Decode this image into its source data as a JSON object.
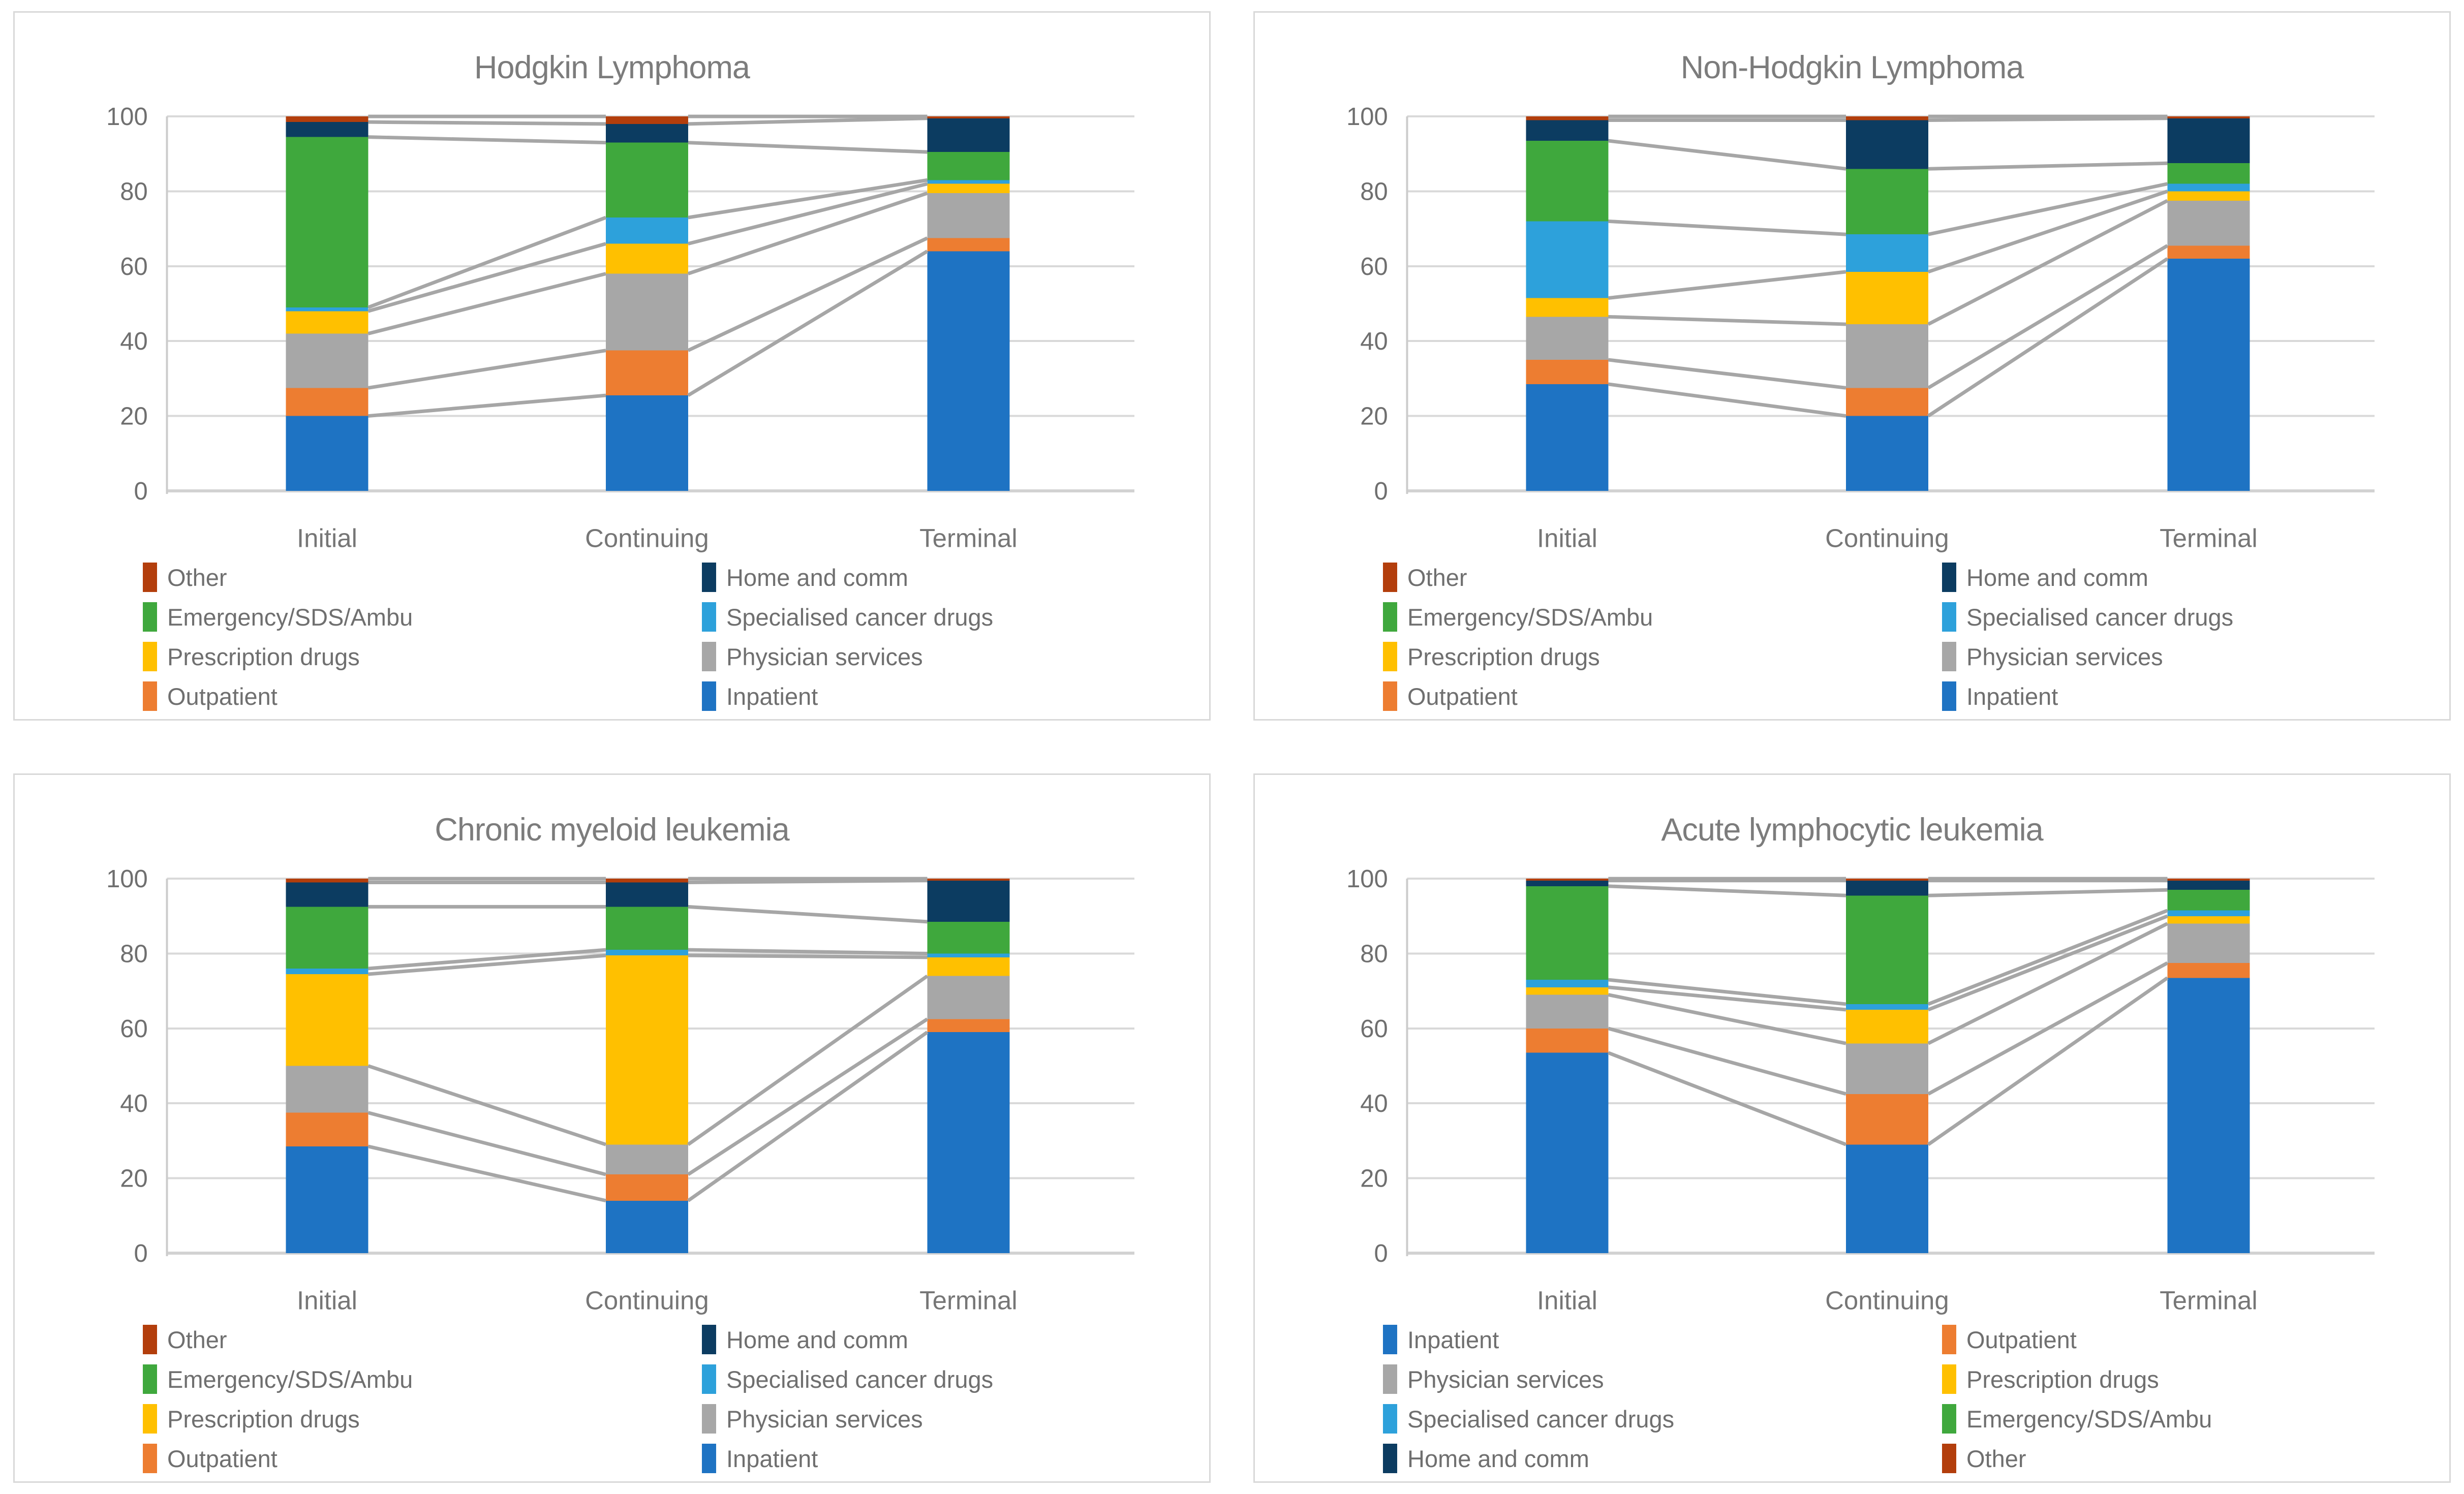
{
  "page": {
    "background": "#ffffff",
    "panel_border": "#d9d9d9"
  },
  "palette": {
    "Inpatient": "#1E73C3",
    "Outpatient": "#ED7D31",
    "Physician services": "#A7A7A7",
    "Prescription drugs": "#FFC000",
    "Specialised cancer drugs": "#2DA1DB",
    "Emergency/SDS/Ambu": "#3FA83D",
    "Home and comm": "#0C3C61",
    "Other": "#B33E0C"
  },
  "style": {
    "gridline_color": "#d9d9d9",
    "baseline_color": "#d2d2d2",
    "axisline_color": "#cccccc",
    "connector_color": "#a6a6a6",
    "tick_text_color": "#6f6f6f",
    "category_text_color": "#767676"
  },
  "chart_data": [
    {
      "type": "bar",
      "stacked": true,
      "title": "Hodgkin Lymphoma",
      "categories": [
        "Initial",
        "Continuing",
        "Terminal"
      ],
      "ylim": [
        0,
        100
      ],
      "yticks": [
        0,
        20,
        40,
        60,
        80,
        100
      ],
      "grid": true,
      "legend_position": "bottom",
      "series": [
        {
          "name": "Inpatient",
          "color": "#1E73C3",
          "values": [
            20,
            25.5,
            64
          ]
        },
        {
          "name": "Outpatient",
          "color": "#ED7D31",
          "values": [
            7.5,
            12,
            3.5
          ]
        },
        {
          "name": "Physician services",
          "color": "#A7A7A7",
          "values": [
            14.5,
            20.5,
            12
          ]
        },
        {
          "name": "Prescription drugs",
          "color": "#FFC000",
          "values": [
            6,
            8,
            2.5
          ]
        },
        {
          "name": "Specialised cancer drugs",
          "color": "#2DA1DB",
          "values": [
            1,
            7,
            1
          ]
        },
        {
          "name": "Emergency/SDS/Ambu",
          "color": "#3FA83D",
          "values": [
            45.5,
            20,
            7.5
          ]
        },
        {
          "name": "Home and comm",
          "color": "#0C3C61",
          "values": [
            4,
            5,
            9
          ]
        },
        {
          "name": "Other",
          "color": "#B33E0C",
          "values": [
            1.5,
            2,
            0.5
          ]
        }
      ],
      "legend_rows": [
        [
          "Other",
          "Home and comm"
        ],
        [
          "Emergency/SDS/Ambu",
          "Specialised cancer drugs"
        ],
        [
          "Prescription drugs",
          "Physician services"
        ],
        [
          "Outpatient",
          "Inpatient"
        ]
      ]
    },
    {
      "type": "bar",
      "stacked": true,
      "title": "Non-Hodgkin Lymphoma",
      "categories": [
        "Initial",
        "Continuing",
        "Terminal"
      ],
      "ylim": [
        0,
        100
      ],
      "yticks": [
        0,
        20,
        40,
        60,
        80,
        100
      ],
      "grid": true,
      "legend_position": "bottom",
      "series": [
        {
          "name": "Inpatient",
          "color": "#1E73C3",
          "values": [
            28.5,
            20,
            62
          ]
        },
        {
          "name": "Outpatient",
          "color": "#ED7D31",
          "values": [
            6.5,
            7.5,
            3.5
          ]
        },
        {
          "name": "Physician services",
          "color": "#A7A7A7",
          "values": [
            11.5,
            17,
            12
          ]
        },
        {
          "name": "Prescription drugs",
          "color": "#FFC000",
          "values": [
            5,
            14,
            2.5
          ]
        },
        {
          "name": "Specialised cancer drugs",
          "color": "#2DA1DB",
          "values": [
            20.5,
            10,
            2
          ]
        },
        {
          "name": "Emergency/SDS/Ambu",
          "color": "#3FA83D",
          "values": [
            21.5,
            17.5,
            5.5
          ]
        },
        {
          "name": "Home and comm",
          "color": "#0C3C61",
          "values": [
            5.5,
            13,
            12
          ]
        },
        {
          "name": "Other",
          "color": "#B33E0C",
          "values": [
            1,
            1,
            0.5
          ]
        }
      ],
      "legend_rows": [
        [
          "Other",
          "Home and comm"
        ],
        [
          "Emergency/SDS/Ambu",
          "Specialised cancer drugs"
        ],
        [
          "Prescription drugs",
          "Physician services"
        ],
        [
          "Outpatient",
          "Inpatient"
        ]
      ]
    },
    {
      "type": "bar",
      "stacked": true,
      "title": "Chronic myeloid leukemia",
      "categories": [
        "Initial",
        "Continuing",
        "Terminal"
      ],
      "ylim": [
        0,
        100
      ],
      "yticks": [
        0,
        20,
        40,
        60,
        80,
        100
      ],
      "grid": true,
      "legend_position": "bottom",
      "series": [
        {
          "name": "Inpatient",
          "color": "#1E73C3",
          "values": [
            28.5,
            14,
            59
          ]
        },
        {
          "name": "Outpatient",
          "color": "#ED7D31",
          "values": [
            9,
            7,
            3.5
          ]
        },
        {
          "name": "Physician services",
          "color": "#A7A7A7",
          "values": [
            12.5,
            8,
            11.5
          ]
        },
        {
          "name": "Prescription drugs",
          "color": "#FFC000",
          "values": [
            24.5,
            50.5,
            5
          ]
        },
        {
          "name": "Specialised cancer drugs",
          "color": "#2DA1DB",
          "values": [
            1.5,
            1.5,
            1
          ]
        },
        {
          "name": "Emergency/SDS/Ambu",
          "color": "#3FA83D",
          "values": [
            16.5,
            11.5,
            8.5
          ]
        },
        {
          "name": "Home and comm",
          "color": "#0C3C61",
          "values": [
            6.5,
            6.5,
            11
          ]
        },
        {
          "name": "Other",
          "color": "#B33E0C",
          "values": [
            1,
            1,
            0.5
          ]
        }
      ],
      "legend_rows": [
        [
          "Other",
          "Home and comm"
        ],
        [
          "Emergency/SDS/Ambu",
          "Specialised cancer drugs"
        ],
        [
          "Prescription drugs",
          "Physician services"
        ],
        [
          "Outpatient",
          "Inpatient"
        ]
      ]
    },
    {
      "type": "bar",
      "stacked": true,
      "title": "Acute lymphocytic leukemia",
      "categories": [
        "Initial",
        "Continuing",
        "Terminal"
      ],
      "ylim": [
        0,
        100
      ],
      "yticks": [
        0,
        20,
        40,
        60,
        80,
        100
      ],
      "grid": true,
      "legend_position": "bottom",
      "series": [
        {
          "name": "Inpatient",
          "color": "#1E73C3",
          "values": [
            53.5,
            29,
            73.5
          ]
        },
        {
          "name": "Outpatient",
          "color": "#ED7D31",
          "values": [
            6.5,
            13.5,
            4
          ]
        },
        {
          "name": "Physician services",
          "color": "#A7A7A7",
          "values": [
            9,
            13.5,
            10.5
          ]
        },
        {
          "name": "Prescription drugs",
          "color": "#FFC000",
          "values": [
            2,
            9,
            2
          ]
        },
        {
          "name": "Specialised cancer drugs",
          "color": "#2DA1DB",
          "values": [
            2,
            1.5,
            1.5
          ]
        },
        {
          "name": "Emergency/SDS/Ambu",
          "color": "#3FA83D",
          "values": [
            25,
            29,
            5.5
          ]
        },
        {
          "name": "Home and comm",
          "color": "#0C3C61",
          "values": [
            1.5,
            4,
            2.5
          ]
        },
        {
          "name": "Other",
          "color": "#B33E0C",
          "values": [
            0.5,
            0.5,
            0.5
          ]
        }
      ],
      "legend_rows": [
        [
          "Inpatient",
          "Outpatient"
        ],
        [
          "Physician services",
          "Prescription drugs"
        ],
        [
          "Specialised cancer drugs",
          "Emergency/SDS/Ambu"
        ],
        [
          "Home and comm",
          "Other"
        ]
      ]
    }
  ]
}
